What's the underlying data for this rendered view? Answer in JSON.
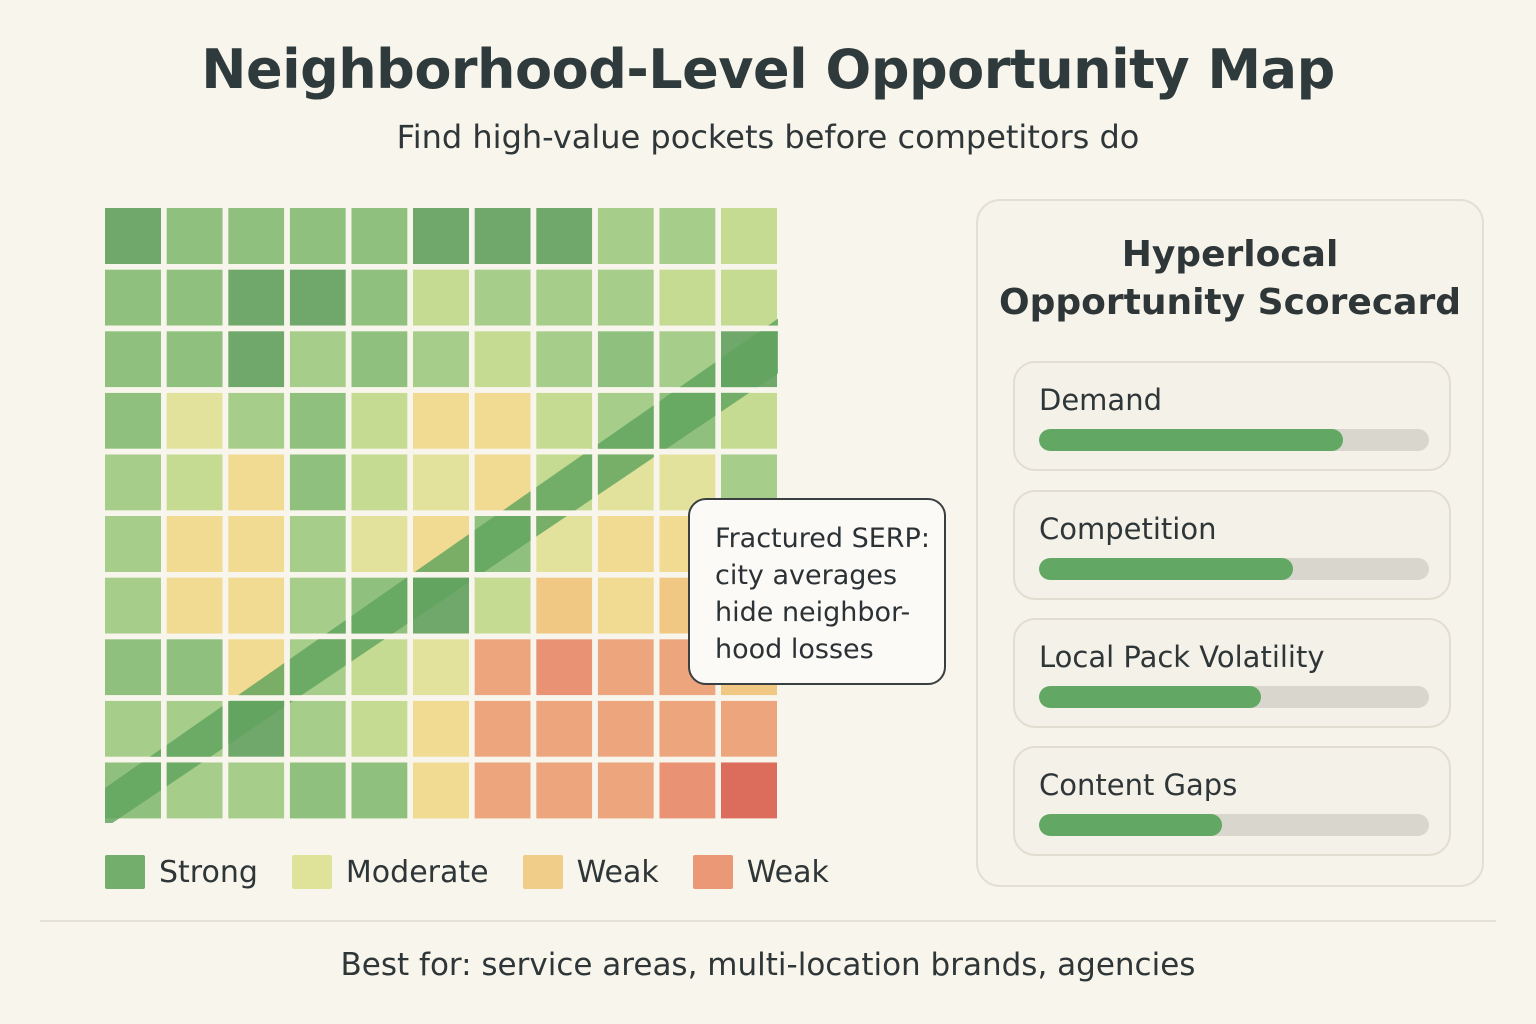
{
  "header": {
    "title": "Neighborhood-Level Opportunity Map",
    "subtitle": "Find high-value pockets before competitors do"
  },
  "callout": {
    "lines": [
      "Fractured SERP:",
      "city averages",
      "hide neighbor-",
      "hood losses"
    ]
  },
  "legend": [
    {
      "label": "Strong",
      "color": "#73ae6d"
    },
    {
      "label": "Moderate",
      "color": "#dfe39a"
    },
    {
      "label": "Weak",
      "color": "#f0cd88"
    },
    {
      "label": "Weak",
      "color": "#eb9876"
    }
  ],
  "scorecard": {
    "title_lines": [
      "Hyperlocal",
      "Opportunity Scorecard"
    ],
    "metrics": [
      {
        "label": "Demand",
        "value": 0.78
      },
      {
        "label": "Competition",
        "value": 0.65
      },
      {
        "label": "Local Pack Volatility",
        "value": 0.57
      },
      {
        "label": "Content Gaps",
        "value": 0.47
      }
    ]
  },
  "footer": {
    "text": "Best for: service areas, multi-location brands, agencies"
  },
  "chart_data": {
    "type": "heatmap",
    "rows": 10,
    "cols": 11,
    "palette": [
      "#6fa86a",
      "#8fc07d",
      "#a6cd8a",
      "#c5db92",
      "#e3e29c",
      "#f1da92",
      "#f0c884",
      "#eda57e",
      "#ea9274",
      "#dc6c5c"
    ],
    "matrix": [
      [
        0,
        1,
        1,
        1,
        1,
        0,
        0,
        0,
        2,
        2,
        3
      ],
      [
        1,
        1,
        0,
        0,
        1,
        3,
        2,
        2,
        2,
        3,
        3
      ],
      [
        1,
        1,
        0,
        2,
        1,
        2,
        3,
        2,
        1,
        2,
        0
      ],
      [
        1,
        4,
        2,
        1,
        3,
        5,
        5,
        3,
        2,
        1,
        3
      ],
      [
        2,
        3,
        5,
        1,
        3,
        4,
        5,
        3,
        4,
        4,
        2
      ],
      [
        2,
        5,
        5,
        2,
        4,
        5,
        1,
        4,
        5,
        5,
        4
      ],
      [
        2,
        5,
        5,
        2,
        1,
        0,
        3,
        6,
        5,
        6,
        4
      ],
      [
        1,
        1,
        5,
        2,
        3,
        4,
        7,
        8,
        7,
        7,
        6
      ],
      [
        2,
        2,
        0,
        2,
        3,
        5,
        7,
        7,
        7,
        7,
        7
      ],
      [
        1,
        2,
        2,
        1,
        1,
        5,
        7,
        7,
        7,
        8,
        9
      ]
    ],
    "band_color": "#5fa35e",
    "legend_position": "bottom"
  }
}
